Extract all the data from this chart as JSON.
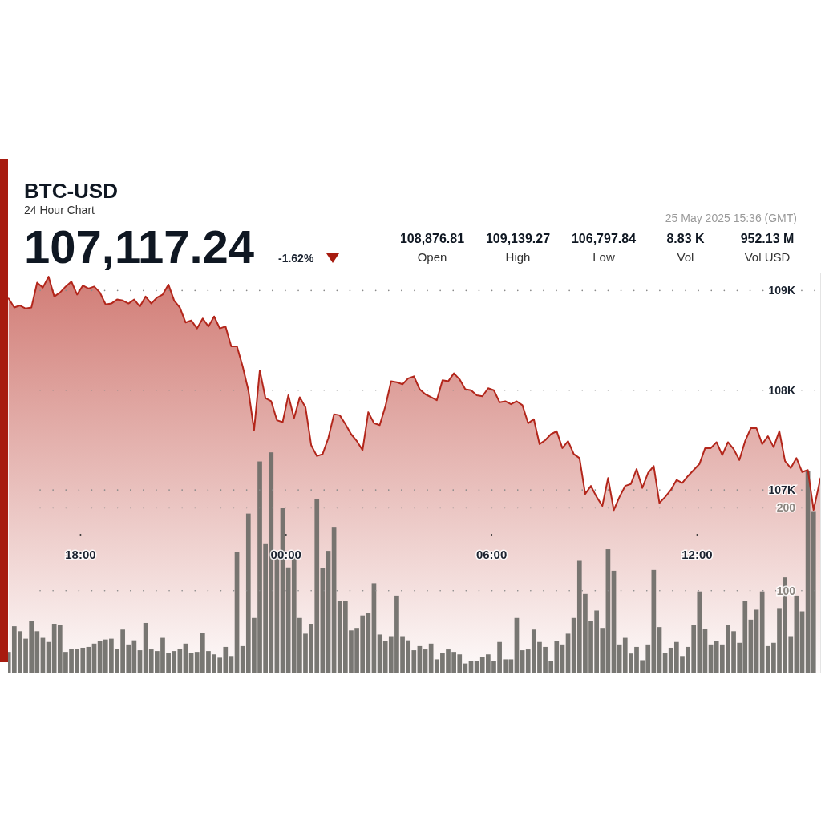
{
  "chart_data": {
    "type": "area",
    "title": "BTC-USD",
    "subtitle": "24 Hour Chart",
    "annotations": [
      "107,117.24",
      "-1.62%",
      "108,876.81",
      "Open",
      "109,139.27",
      "High",
      "106,797.84",
      "Low",
      "8.83 K",
      "Vol",
      "952.13 M",
      "Vol USD",
      "25 May 2025 15:36 (GMT)"
    ],
    "x": [
      "2025-05-24T15:54",
      "2025-05-24T16:04",
      "2025-05-24T16:14",
      "2025-05-24T16:24",
      "2025-05-24T16:34",
      "2025-05-24T16:44",
      "2025-05-24T16:54",
      "2025-05-24T17:04",
      "2025-05-24T17:14",
      "2025-05-24T17:24",
      "2025-05-24T17:34",
      "2025-05-24T17:44",
      "2025-05-24T17:54",
      "2025-05-24T18:04",
      "2025-05-24T18:14",
      "2025-05-24T18:24",
      "2025-05-24T18:34",
      "2025-05-24T18:44",
      "2025-05-24T18:54",
      "2025-05-24T19:04",
      "2025-05-24T19:14",
      "2025-05-24T19:24",
      "2025-05-24T19:34",
      "2025-05-24T19:44",
      "2025-05-24T19:54",
      "2025-05-24T20:04",
      "2025-05-24T20:14",
      "2025-05-24T20:24",
      "2025-05-24T20:34",
      "2025-05-24T20:44",
      "2025-05-24T20:54",
      "2025-05-24T21:04",
      "2025-05-24T21:14",
      "2025-05-24T21:24",
      "2025-05-24T21:34",
      "2025-05-24T21:44",
      "2025-05-24T21:54",
      "2025-05-24T22:04",
      "2025-05-24T22:14",
      "2025-05-24T22:24",
      "2025-05-24T22:34",
      "2025-05-24T22:44",
      "2025-05-24T22:54",
      "2025-05-24T23:04",
      "2025-05-24T23:14",
      "2025-05-24T23:24",
      "2025-05-24T23:34",
      "2025-05-24T23:44",
      "2025-05-24T23:54",
      "2025-05-25T00:04",
      "2025-05-25T00:14",
      "2025-05-25T00:24",
      "2025-05-25T00:34",
      "2025-05-25T00:44",
      "2025-05-25T00:54",
      "2025-05-25T01:04",
      "2025-05-25T01:14",
      "2025-05-25T01:24",
      "2025-05-25T01:34",
      "2025-05-25T01:44",
      "2025-05-25T01:54",
      "2025-05-25T02:04",
      "2025-05-25T02:14",
      "2025-05-25T02:24",
      "2025-05-25T02:34",
      "2025-05-25T02:44",
      "2025-05-25T02:54",
      "2025-05-25T03:04",
      "2025-05-25T03:14",
      "2025-05-25T03:24",
      "2025-05-25T03:34",
      "2025-05-25T03:44",
      "2025-05-25T03:54",
      "2025-05-25T04:04",
      "2025-05-25T04:14",
      "2025-05-25T04:24",
      "2025-05-25T04:34",
      "2025-05-25T04:44",
      "2025-05-25T04:54",
      "2025-05-25T05:04",
      "2025-05-25T05:14",
      "2025-05-25T05:24",
      "2025-05-25T05:34",
      "2025-05-25T05:44",
      "2025-05-25T05:54",
      "2025-05-25T06:04",
      "2025-05-25T06:14",
      "2025-05-25T06:24",
      "2025-05-25T06:34",
      "2025-05-25T06:44",
      "2025-05-25T06:54",
      "2025-05-25T07:04",
      "2025-05-25T07:14",
      "2025-05-25T07:24",
      "2025-05-25T07:34",
      "2025-05-25T07:44",
      "2025-05-25T07:54",
      "2025-05-25T08:04",
      "2025-05-25T08:14",
      "2025-05-25T08:24",
      "2025-05-25T08:34",
      "2025-05-25T08:44",
      "2025-05-25T08:54",
      "2025-05-25T09:04",
      "2025-05-25T09:14",
      "2025-05-25T09:24",
      "2025-05-25T09:34",
      "2025-05-25T09:44",
      "2025-05-25T09:54",
      "2025-05-25T10:04",
      "2025-05-25T10:14",
      "2025-05-25T10:24",
      "2025-05-25T10:34",
      "2025-05-25T10:44",
      "2025-05-25T10:54",
      "2025-05-25T11:04",
      "2025-05-25T11:14",
      "2025-05-25T11:24",
      "2025-05-25T11:34",
      "2025-05-25T11:44",
      "2025-05-25T11:54",
      "2025-05-25T12:04",
      "2025-05-25T12:14",
      "2025-05-25T12:24",
      "2025-05-25T12:34",
      "2025-05-25T12:44",
      "2025-05-25T12:54",
      "2025-05-25T13:04",
      "2025-05-25T13:14",
      "2025-05-25T13:24",
      "2025-05-25T13:34",
      "2025-05-25T13:44",
      "2025-05-25T13:54",
      "2025-05-25T14:04",
      "2025-05-25T14:14",
      "2025-05-25T14:24",
      "2025-05-25T14:34",
      "2025-05-25T14:44",
      "2025-05-25T14:54",
      "2025-05-25T15:04",
      "2025-05-25T15:14",
      "2025-05-25T15:24"
    ],
    "xlim": [
      "2025-05-24T15:53",
      "2025-05-25T15:37"
    ],
    "xticks": [
      {
        "value": "2025-05-24T18:00",
        "label": "18:00"
      },
      {
        "value": "2025-05-25T00:00",
        "label": "00:00"
      },
      {
        "value": "2025-05-25T06:00",
        "label": "06:00"
      },
      {
        "value": "2025-05-25T12:00",
        "label": "12:00"
      }
    ],
    "ylim": [
      105160,
      109180
    ],
    "yticks": [
      {
        "value": 107000,
        "label": "107K"
      },
      {
        "value": 108000,
        "label": "108K"
      },
      {
        "value": 109000,
        "label": "109K"
      }
    ],
    "y2lim": [
      0,
      484
    ],
    "y2ticks": [
      100,
      200
    ],
    "grid": true,
    "series": [
      {
        "color": "#b3261b",
        "x": [
          "2025-05-24T15:54",
          "2025-05-24T16:04",
          "2025-05-24T16:14",
          "2025-05-24T16:24",
          "2025-05-24T16:34",
          "2025-05-24T16:44",
          "2025-05-24T16:54",
          "2025-05-24T17:04",
          "2025-05-24T17:14",
          "2025-05-24T17:24",
          "2025-05-24T17:34",
          "2025-05-24T17:44",
          "2025-05-24T17:54",
          "2025-05-24T18:04",
          "2025-05-24T18:14",
          "2025-05-24T18:24",
          "2025-05-24T18:34",
          "2025-05-24T18:44",
          "2025-05-24T18:54",
          "2025-05-24T19:04",
          "2025-05-24T19:14",
          "2025-05-24T19:24",
          "2025-05-24T19:34",
          "2025-05-24T19:44",
          "2025-05-24T19:54",
          "2025-05-24T20:04",
          "2025-05-24T20:14",
          "2025-05-24T20:24",
          "2025-05-24T20:34",
          "2025-05-24T20:44",
          "2025-05-24T20:54",
          "2025-05-24T21:04",
          "2025-05-24T21:14",
          "2025-05-24T21:24",
          "2025-05-24T21:34",
          "2025-05-24T21:44",
          "2025-05-24T21:54",
          "2025-05-24T22:04",
          "2025-05-24T22:14",
          "2025-05-24T22:24",
          "2025-05-24T22:34",
          "2025-05-24T22:44",
          "2025-05-24T22:54",
          "2025-05-24T23:04",
          "2025-05-24T23:14",
          "2025-05-24T23:24",
          "2025-05-24T23:34",
          "2025-05-24T23:44",
          "2025-05-24T23:54",
          "2025-05-25T00:04",
          "2025-05-25T00:14",
          "2025-05-25T00:24",
          "2025-05-25T00:34",
          "2025-05-25T00:44",
          "2025-05-25T00:54",
          "2025-05-25T01:04",
          "2025-05-25T01:14",
          "2025-05-25T01:24",
          "2025-05-25T01:34",
          "2025-05-25T01:44",
          "2025-05-25T01:54",
          "2025-05-25T02:04",
          "2025-05-25T02:14",
          "2025-05-25T02:24",
          "2025-05-25T02:34",
          "2025-05-25T02:44",
          "2025-05-25T02:54",
          "2025-05-25T03:04",
          "2025-05-25T03:14",
          "2025-05-25T03:24",
          "2025-05-25T03:34",
          "2025-05-25T03:44",
          "2025-05-25T03:54",
          "2025-05-25T04:04",
          "2025-05-25T04:14",
          "2025-05-25T04:24",
          "2025-05-25T04:34",
          "2025-05-25T04:44",
          "2025-05-25T04:54",
          "2025-05-25T05:04",
          "2025-05-25T05:14",
          "2025-05-25T05:24",
          "2025-05-25T05:34",
          "2025-05-25T05:44",
          "2025-05-25T05:54",
          "2025-05-25T06:04",
          "2025-05-25T06:14",
          "2025-05-25T06:24",
          "2025-05-25T06:34",
          "2025-05-25T06:44",
          "2025-05-25T06:54",
          "2025-05-25T07:04",
          "2025-05-25T07:14",
          "2025-05-25T07:24",
          "2025-05-25T07:34",
          "2025-05-25T07:44",
          "2025-05-25T07:54",
          "2025-05-25T08:04",
          "2025-05-25T08:14",
          "2025-05-25T08:24",
          "2025-05-25T08:34",
          "2025-05-25T08:44",
          "2025-05-25T08:54",
          "2025-05-25T09:04",
          "2025-05-25T09:14",
          "2025-05-25T09:24",
          "2025-05-25T09:34",
          "2025-05-25T09:44",
          "2025-05-25T09:54",
          "2025-05-25T10:04",
          "2025-05-25T10:14",
          "2025-05-25T10:24",
          "2025-05-25T10:34",
          "2025-05-25T10:44",
          "2025-05-25T10:54",
          "2025-05-25T11:04",
          "2025-05-25T11:14",
          "2025-05-25T11:24",
          "2025-05-25T11:34",
          "2025-05-25T11:44",
          "2025-05-25T11:54",
          "2025-05-25T12:04",
          "2025-05-25T12:14",
          "2025-05-25T12:24",
          "2025-05-25T12:34",
          "2025-05-25T12:44",
          "2025-05-25T12:54",
          "2025-05-25T13:04",
          "2025-05-25T13:14",
          "2025-05-25T13:24",
          "2025-05-25T13:34",
          "2025-05-25T13:44",
          "2025-05-25T13:54",
          "2025-05-25T14:04",
          "2025-05-25T14:14",
          "2025-05-25T14:24",
          "2025-05-25T14:34",
          "2025-05-25T14:44",
          "2025-05-25T14:54",
          "2025-05-25T15:04",
          "2025-05-25T15:14",
          "2025-05-25T15:24",
          "2025-05-25T15:36"
        ],
        "values": [
          108920,
          108830,
          108850,
          108820,
          108830,
          109080,
          109030,
          109139,
          108940,
          108980,
          109040,
          109090,
          108960,
          109050,
          109020,
          109040,
          108980,
          108860,
          108870,
          108910,
          108900,
          108870,
          108910,
          108840,
          108940,
          108870,
          108930,
          108960,
          109060,
          108900,
          108830,
          108680,
          108700,
          108620,
          108720,
          108640,
          108740,
          108620,
          108640,
          108440,
          108440,
          108240,
          108000,
          107600,
          108200,
          107920,
          107890,
          107700,
          107680,
          107950,
          107720,
          107930,
          107830,
          107450,
          107340,
          107360,
          107520,
          107760,
          107750,
          107660,
          107560,
          107490,
          107400,
          107780,
          107670,
          107650,
          107840,
          108090,
          108080,
          108060,
          108120,
          108140,
          108010,
          107960,
          107930,
          107900,
          108100,
          108090,
          108170,
          108110,
          108010,
          108000,
          107950,
          107940,
          108020,
          108000,
          107880,
          107890,
          107860,
          107890,
          107850,
          107670,
          107710,
          107460,
          107500,
          107560,
          107590,
          107420,
          107490,
          107360,
          107320,
          106960,
          107040,
          106930,
          106840,
          107120,
          106798,
          106930,
          107040,
          107060,
          107210,
          107020,
          107170,
          107240,
          106870,
          106930,
          107000,
          107100,
          107070,
          107140,
          107200,
          107260,
          107420,
          107420,
          107480,
          107350,
          107480,
          107410,
          107300,
          107490,
          107620,
          107620,
          107460,
          107540,
          107430,
          107590,
          107290,
          107220,
          107320,
          107180,
          107200,
          106800,
          107117
        ]
      },
      {
        "type": "bar",
        "axis": "y2",
        "color": "#6d6b67",
        "values": [
          26,
          57,
          51,
          42,
          63,
          51,
          43,
          38,
          60,
          59,
          26,
          30,
          30,
          31,
          32,
          36,
          39,
          41,
          42,
          30,
          53,
          35,
          40,
          28,
          61,
          29,
          27,
          43,
          25,
          27,
          30,
          36,
          25,
          26,
          49,
          27,
          23,
          19,
          32,
          21,
          147,
          33,
          193,
          67,
          256,
          157,
          267,
          141,
          200,
          128,
          141,
          67,
          48,
          60,
          211,
          127,
          148,
          177,
          88,
          88,
          52,
          55,
          70,
          73,
          109,
          47,
          39,
          45,
          94,
          45,
          40,
          28,
          33,
          29,
          36,
          17,
          25,
          29,
          26,
          23,
          12,
          15,
          15,
          20,
          23,
          15,
          38,
          17,
          17,
          67,
          28,
          29,
          53,
          38,
          32,
          15,
          39,
          35,
          48,
          67,
          136,
          96,
          63,
          76,
          55,
          150,
          124,
          35,
          43,
          24,
          32,
          16,
          35,
          125,
          56,
          25,
          31,
          38,
          21,
          32,
          59,
          99,
          54,
          35,
          39,
          35,
          59,
          51,
          37,
          88,
          65,
          77,
          99,
          33,
          37,
          79,
          116,
          45,
          94,
          75,
          244,
          196
        ]
      }
    ]
  }
}
